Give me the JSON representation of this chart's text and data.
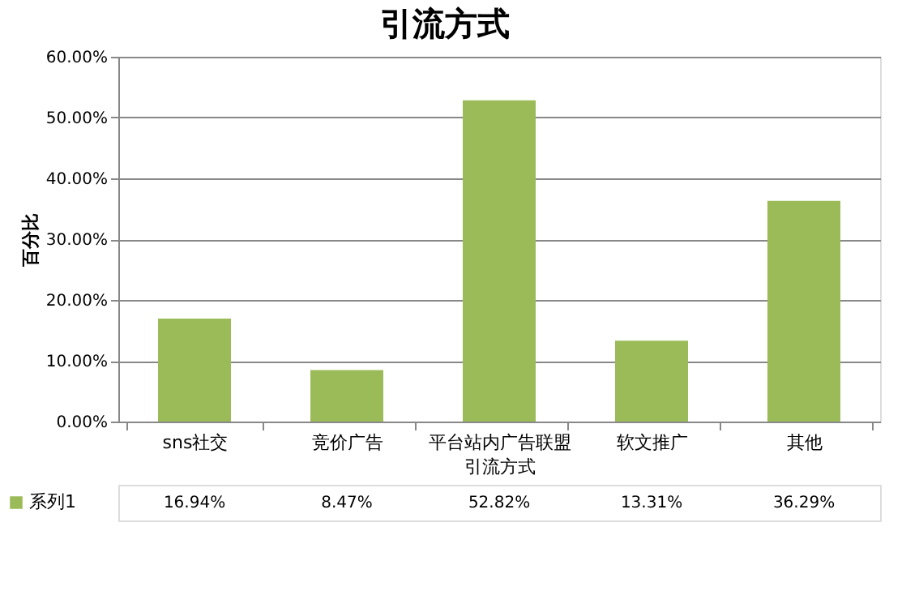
{
  "chart_data": {
    "type": "bar",
    "title": "引流方式",
    "xlabel": "引流方式",
    "ylabel": "百分比",
    "categories": [
      "sns社交",
      "竞价广告",
      "平台站内广告联盟",
      "软文推广",
      "其他"
    ],
    "series": [
      {
        "name": "系列1",
        "color": "#9bbb59",
        "values": [
          16.94,
          8.47,
          52.82,
          13.31,
          36.29
        ],
        "value_labels": [
          "16.94%",
          "8.47%",
          "52.82%",
          "13.31%",
          "36.29%"
        ]
      }
    ],
    "ylim": [
      0,
      60
    ],
    "yticks": [
      {
        "value": 0,
        "label": "0.00%"
      },
      {
        "value": 10,
        "label": "10.00%"
      },
      {
        "value": 20,
        "label": "20.00%"
      },
      {
        "value": 30,
        "label": "30.00%"
      },
      {
        "value": 40,
        "label": "40.00%"
      },
      {
        "value": 50,
        "label": "50.00%"
      },
      {
        "value": 60,
        "label": "60.00%"
      }
    ],
    "grid": "y"
  }
}
